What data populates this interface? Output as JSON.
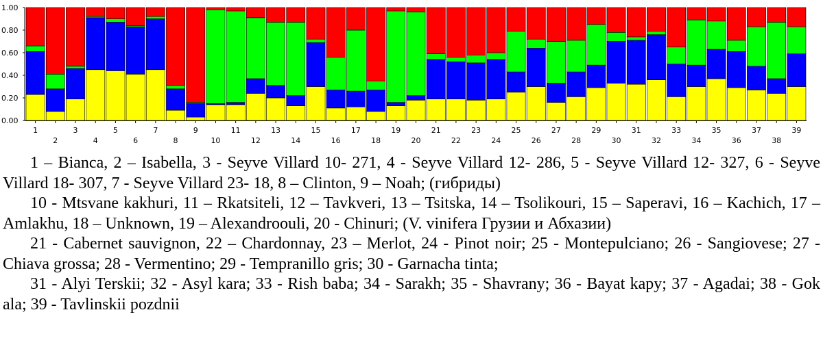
{
  "chart_data": {
    "type": "bar",
    "stacked": true,
    "ylim": [
      0,
      1
    ],
    "yticks": [
      "0.00",
      "0.20",
      "0.40",
      "0.60",
      "0.80",
      "1.00"
    ],
    "categories": [
      "1",
      "2",
      "3",
      "4",
      "5",
      "6",
      "7",
      "8",
      "9",
      "10",
      "11",
      "12",
      "13",
      "14",
      "15",
      "16",
      "17",
      "18",
      "19",
      "20",
      "21",
      "22",
      "23",
      "24",
      "25",
      "26",
      "27",
      "28",
      "29",
      "30",
      "31",
      "32",
      "33",
      "34",
      "35",
      "36",
      "37",
      "38",
      "39"
    ],
    "series": [
      {
        "color": "#ffff00",
        "values": [
          0.23,
          0.08,
          0.19,
          0.45,
          0.44,
          0.41,
          0.45,
          0.09,
          0.03,
          0.14,
          0.14,
          0.24,
          0.2,
          0.13,
          0.3,
          0.11,
          0.12,
          0.08,
          0.13,
          0.18,
          0.19,
          0.19,
          0.18,
          0.19,
          0.25,
          0.3,
          0.16,
          0.21,
          0.29,
          0.33,
          0.32,
          0.36,
          0.21,
          0.3,
          0.37,
          0.29,
          0.27,
          0.24,
          0.3
        ]
      },
      {
        "color": "#0000ff",
        "values": [
          0.38,
          0.2,
          0.27,
          0.46,
          0.43,
          0.42,
          0.45,
          0.19,
          0.12,
          0.01,
          0.02,
          0.13,
          0.11,
          0.09,
          0.39,
          0.16,
          0.14,
          0.19,
          0.03,
          0.04,
          0.35,
          0.33,
          0.33,
          0.35,
          0.18,
          0.34,
          0.17,
          0.22,
          0.2,
          0.37,
          0.39,
          0.4,
          0.29,
          0.19,
          0.26,
          0.32,
          0.21,
          0.13,
          0.29
        ]
      },
      {
        "color": "#00ff00",
        "values": [
          0.05,
          0.13,
          0.02,
          0.01,
          0.03,
          0.01,
          0.02,
          0.03,
          0.01,
          0.83,
          0.81,
          0.54,
          0.56,
          0.65,
          0.03,
          0.29,
          0.54,
          0.08,
          0.81,
          0.74,
          0.05,
          0.04,
          0.07,
          0.06,
          0.36,
          0.08,
          0.37,
          0.28,
          0.36,
          0.08,
          0.03,
          0.03,
          0.15,
          0.4,
          0.25,
          0.1,
          0.35,
          0.5,
          0.24
        ]
      },
      {
        "color": "#ff0000",
        "values": [
          0.34,
          0.59,
          0.52,
          0.08,
          0.1,
          0.16,
          0.08,
          0.69,
          0.84,
          0.02,
          0.03,
          0.09,
          0.13,
          0.13,
          0.28,
          0.44,
          0.2,
          0.65,
          0.03,
          0.04,
          0.41,
          0.44,
          0.42,
          0.4,
          0.21,
          0.28,
          0.3,
          0.29,
          0.15,
          0.22,
          0.26,
          0.21,
          0.35,
          0.11,
          0.12,
          0.29,
          0.17,
          0.13,
          0.17
        ]
      }
    ]
  },
  "caption": [
    "1 – Bianca, 2 – Isabella, 3 - Seyve Villard 10- 271, 4 - Seyve Villard 12- 286, 5 - Seyve Villard 12- 327, 6 - Seyve Villard 18- 307, 7 - Seyve Villard 23- 18, 8 – Clinton, 9 – Noah; (гибриды)",
    "10 - Mtsvane kakhuri, 11 – Rkatsiteli, 12 – Tavkveri, 13 – Tsitska, 14 – Tsolikouri, 15 – Saperavi, 16 – Kachich, 17 – Amlakhu, 18 – Unknown, 19 – Alexandroouli, 20 - Chinuri; (V. vinifera Грузии и Абхазии)",
    "21 - Cabernet sauvignon, 22 – Chardonnay, 23 – Merlot, 24 - Pinot noir; 25 - Montepulciano; 26 - Sangiovese; 27 - Chiava grossa; 28 - Vermentino; 29 - Tempranillo gris; 30 - Garnacha tinta;",
    "31 - Alyi Terskii; 32 - Asyl kara; 33 - Rish baba; 34 - Sarakh; 35 - Shavrany; 36 - Bayat kapy; 37 - Agadai; 38 - Gok ala; 39 - Tavlinskii pozdnii"
  ]
}
